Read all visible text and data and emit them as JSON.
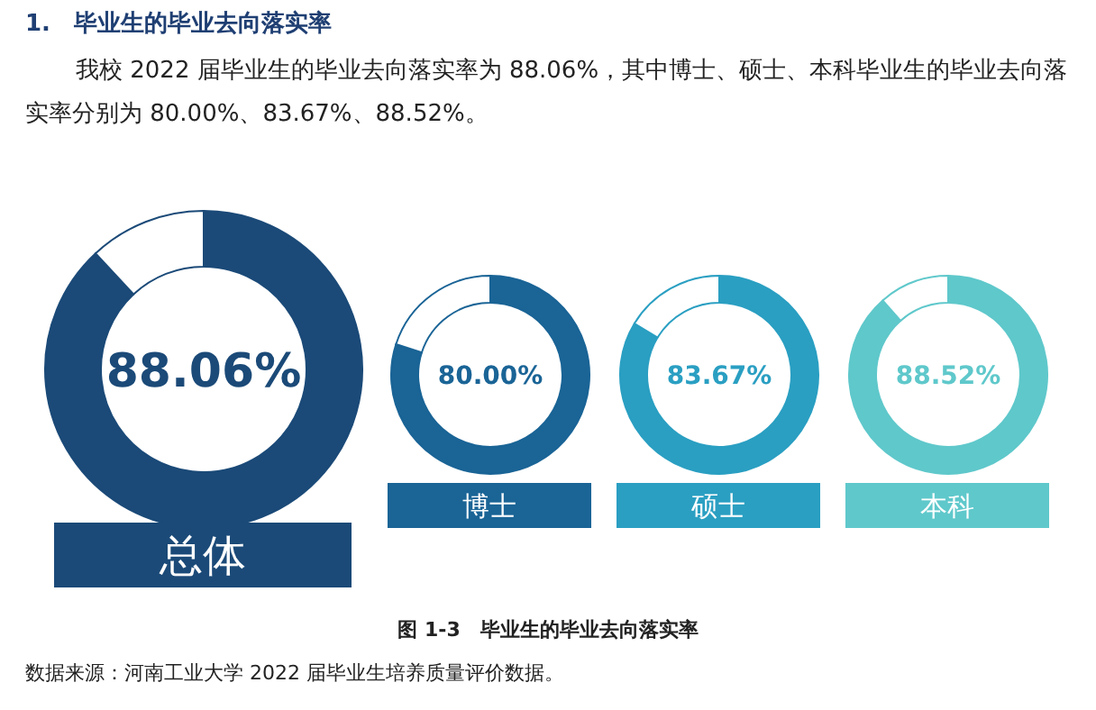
{
  "chart_data": [
    {
      "type": "donut",
      "title": "1.　毕业生的毕业去向落实率",
      "subtitle": "我校 2022 届毕业生的毕业去向落实率为 88.06%，其中博士、硕士、本科毕业生的毕业去向落实率分别为 80.00%、83.67%、88.52%。",
      "xlabel": "总体",
      "categories": [
        null,
        null
      ],
      "values": [
        88.06,
        11.94
      ],
      "colors": [
        "#1b4a78",
        "#ffffff"
      ],
      "value_labels": [
        "88.06%",
        null
      ]
    },
    {
      "type": "donut",
      "xlabel": "博士",
      "categories": [
        null,
        null
      ],
      "values": [
        80.0,
        20.0
      ],
      "colors": [
        "#1a6496",
        "#ffffff"
      ],
      "value_labels": [
        "80.00%",
        null
      ]
    },
    {
      "type": "donut",
      "xlabel": "硕士",
      "categories": [
        null,
        null
      ],
      "values": [
        83.67,
        16.33
      ],
      "colors": [
        "#2a9fc2",
        "#ffffff"
      ],
      "value_labels": [
        "83.67%",
        null
      ]
    },
    {
      "type": "donut",
      "xlabel": "本科",
      "categories": [
        null,
        null
      ],
      "values": [
        88.52,
        11.48
      ],
      "colors": [
        "#5fc8cb",
        "#ffffff"
      ],
      "value_labels": [
        "88.52%",
        null
      ],
      "annotations": [
        "图 1-3　毕业生的毕业去向落实率",
        "数据来源：河南工业大学 2022 届毕业生培养质量评价数据。"
      ]
    }
  ]
}
